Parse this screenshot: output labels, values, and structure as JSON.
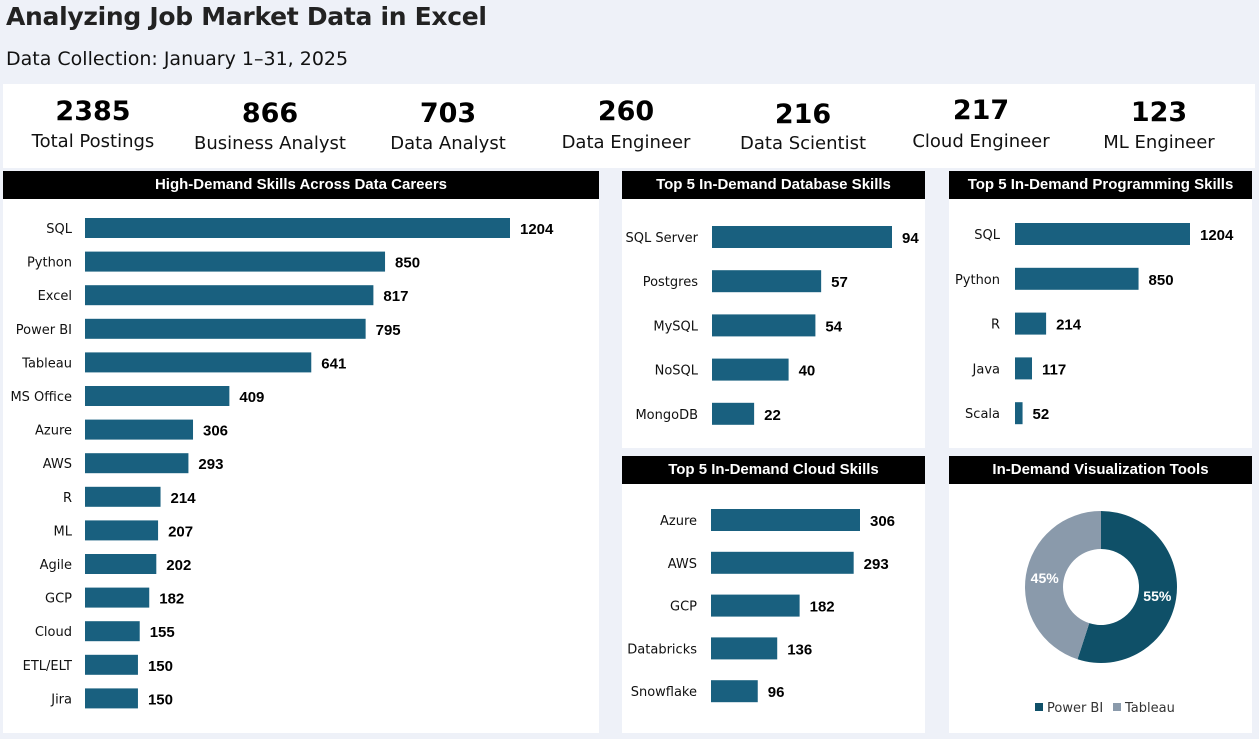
{
  "title": "Analyzing Job Market Data in Excel",
  "subtitle": "Data Collection: January 1–31, 2025",
  "colors": {
    "bar": "#19607f",
    "power_bi": "#0f5068",
    "tableau": "#8a9aab"
  },
  "kpis": [
    {
      "value": "2385",
      "label": "Total Postings"
    },
    {
      "value": "866",
      "label": "Business Analyst"
    },
    {
      "value": "703",
      "label": "Data Analyst"
    },
    {
      "value": "260",
      "label": "Data Engineer"
    },
    {
      "value": "216",
      "label": "Data Scientist"
    },
    {
      "value": "217",
      "label": "Cloud Engineer"
    },
    {
      "value": "123",
      "label": "ML Engineer"
    }
  ],
  "chart_data": [
    {
      "id": "skills",
      "type": "bar",
      "orientation": "horizontal",
      "title": "High-Demand Skills Across Data Careers",
      "categories": [
        "SQL",
        "Python",
        "Excel",
        "Power BI",
        "Tableau",
        "MS Office",
        "Azure",
        "AWS",
        "R",
        "ML",
        "Agile",
        "GCP",
        "Cloud",
        "ETL/ELT",
        "Jira"
      ],
      "values": [
        1204,
        850,
        817,
        795,
        641,
        409,
        306,
        293,
        214,
        207,
        202,
        182,
        155,
        150,
        150
      ]
    },
    {
      "id": "database",
      "type": "bar",
      "orientation": "horizontal",
      "title": "Top 5 In-Demand Database Skills",
      "categories": [
        "SQL Server",
        "Postgres",
        "MySQL",
        "NoSQL",
        "MongoDB"
      ],
      "values": [
        94,
        57,
        54,
        40,
        22
      ]
    },
    {
      "id": "programming",
      "type": "bar",
      "orientation": "horizontal",
      "title": "Top 5 In-Demand Programming Skills",
      "categories": [
        "SQL",
        "Python",
        "R",
        "Java",
        "Scala"
      ],
      "values": [
        1204,
        850,
        214,
        117,
        52
      ]
    },
    {
      "id": "cloud",
      "type": "bar",
      "orientation": "horizontal",
      "title": "Top 5 In-Demand Cloud Skills",
      "categories": [
        "Azure",
        "AWS",
        "GCP",
        "Databricks",
        "Snowflake"
      ],
      "values": [
        306,
        293,
        182,
        136,
        96
      ]
    },
    {
      "id": "viz",
      "type": "pie",
      "donut": true,
      "title": "In-Demand Visualization Tools",
      "categories": [
        "Power BI",
        "Tableau"
      ],
      "values": [
        55,
        45
      ],
      "value_labels": [
        "55%",
        "45%"
      ],
      "legend": "bottom"
    }
  ]
}
